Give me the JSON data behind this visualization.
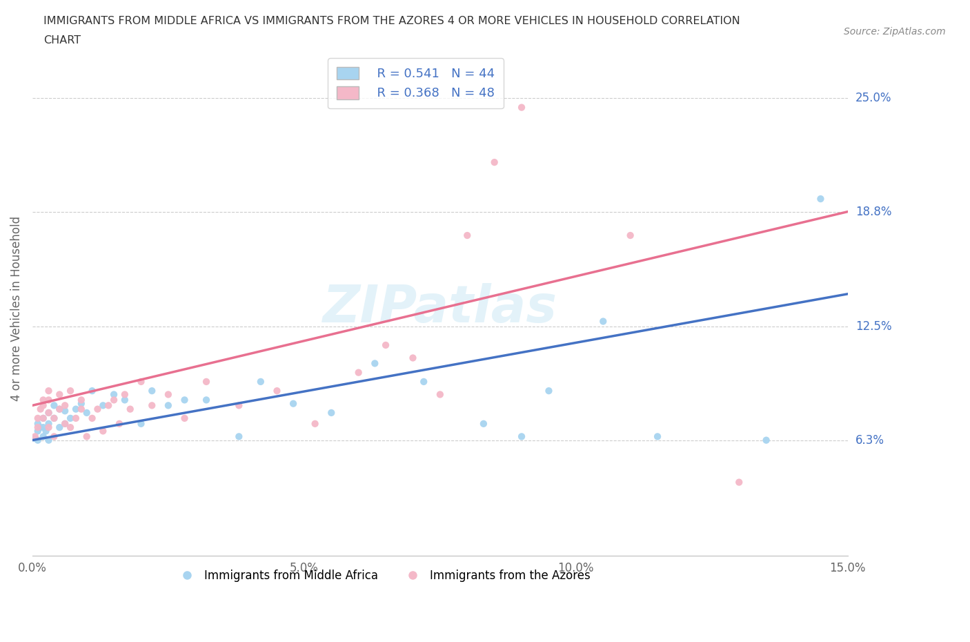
{
  "title_line1": "IMMIGRANTS FROM MIDDLE AFRICA VS IMMIGRANTS FROM THE AZORES 4 OR MORE VEHICLES IN HOUSEHOLD CORRELATION",
  "title_line2": "CHART",
  "source": "Source: ZipAtlas.com",
  "ylabel": "4 or more Vehicles in Household",
  "xlim": [
    0.0,
    0.15
  ],
  "ylim": [
    0.0,
    0.27
  ],
  "xtick_labels": [
    "0.0%",
    "5.0%",
    "10.0%",
    "15.0%"
  ],
  "xtick_values": [
    0.0,
    0.05,
    0.1,
    0.15
  ],
  "ytick_labels": [
    "6.3%",
    "12.5%",
    "18.8%",
    "25.0%"
  ],
  "ytick_values": [
    0.063,
    0.125,
    0.188,
    0.25
  ],
  "R_blue": 0.541,
  "N_blue": 44,
  "R_pink": 0.368,
  "N_pink": 48,
  "color_blue": "#a8d4f0",
  "color_pink": "#f4b8c8",
  "line_blue": "#4472c4",
  "line_pink": "#e87090",
  "tick_color": "#4472c4",
  "legend_label_blue": "Immigrants from Middle Africa",
  "legend_label_pink": "Immigrants from the Azores",
  "watermark": "ZIPatlas",
  "blue_line_x0": 0.0,
  "blue_line_y0": 0.063,
  "blue_line_x1": 0.15,
  "blue_line_y1": 0.143,
  "pink_line_x0": 0.0,
  "pink_line_y0": 0.082,
  "pink_line_x1": 0.15,
  "pink_line_y1": 0.188,
  "blue_scatter_x": [
    0.0005,
    0.001,
    0.001,
    0.001,
    0.0015,
    0.002,
    0.002,
    0.002,
    0.0025,
    0.003,
    0.003,
    0.003,
    0.004,
    0.004,
    0.005,
    0.005,
    0.006,
    0.006,
    0.007,
    0.008,
    0.009,
    0.01,
    0.011,
    0.013,
    0.015,
    0.017,
    0.02,
    0.022,
    0.025,
    0.028,
    0.032,
    0.038,
    0.042,
    0.048,
    0.055,
    0.063,
    0.072,
    0.083,
    0.09,
    0.095,
    0.105,
    0.115,
    0.135,
    0.145
  ],
  "blue_scatter_y": [
    0.064,
    0.063,
    0.068,
    0.072,
    0.07,
    0.065,
    0.07,
    0.075,
    0.068,
    0.063,
    0.072,
    0.078,
    0.075,
    0.082,
    0.07,
    0.08,
    0.072,
    0.079,
    0.075,
    0.08,
    0.083,
    0.078,
    0.09,
    0.082,
    0.088,
    0.085,
    0.072,
    0.09,
    0.082,
    0.085,
    0.085,
    0.065,
    0.095,
    0.083,
    0.078,
    0.105,
    0.095,
    0.072,
    0.065,
    0.09,
    0.128,
    0.065,
    0.063,
    0.195
  ],
  "pink_scatter_x": [
    0.0005,
    0.001,
    0.001,
    0.0015,
    0.002,
    0.002,
    0.002,
    0.003,
    0.003,
    0.003,
    0.003,
    0.004,
    0.004,
    0.005,
    0.005,
    0.006,
    0.006,
    0.007,
    0.007,
    0.008,
    0.009,
    0.009,
    0.01,
    0.011,
    0.012,
    0.013,
    0.014,
    0.015,
    0.016,
    0.017,
    0.018,
    0.02,
    0.022,
    0.025,
    0.028,
    0.032,
    0.038,
    0.045,
    0.052,
    0.06,
    0.065,
    0.07,
    0.075,
    0.08,
    0.085,
    0.09,
    0.11,
    0.13
  ],
  "pink_scatter_y": [
    0.065,
    0.07,
    0.075,
    0.08,
    0.082,
    0.075,
    0.085,
    0.07,
    0.078,
    0.085,
    0.09,
    0.075,
    0.065,
    0.08,
    0.088,
    0.072,
    0.082,
    0.07,
    0.09,
    0.075,
    0.08,
    0.085,
    0.065,
    0.075,
    0.08,
    0.068,
    0.082,
    0.085,
    0.072,
    0.088,
    0.08,
    0.095,
    0.082,
    0.088,
    0.075,
    0.095,
    0.082,
    0.09,
    0.072,
    0.1,
    0.115,
    0.108,
    0.088,
    0.175,
    0.215,
    0.245,
    0.175,
    0.04
  ]
}
